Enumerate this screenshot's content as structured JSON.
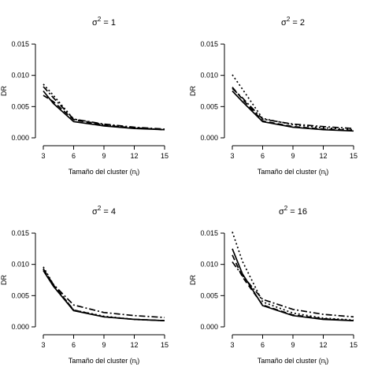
{
  "chart_data": [
    {
      "type": "line",
      "title_base": "σ",
      "title_sup": "2",
      "title_rest": " = 1",
      "xlabel_main": "Tamaño del cluster (n",
      "xlabel_sub": "i",
      "xlabel_end": ")",
      "ylabel": "DR",
      "xticks": [
        "3",
        "6",
        "9",
        "12",
        "15"
      ],
      "yticks": [
        "0.000",
        "0.005",
        "0.010",
        "0.015"
      ],
      "xlim": [
        3,
        15
      ],
      "ylim": [
        0,
        0.015
      ],
      "x": [
        3,
        4,
        6,
        9,
        12,
        15
      ],
      "series": [
        {
          "dash": "solid",
          "values": [
            0.0075,
            0.0055,
            0.0026,
            0.0019,
            0.0015,
            0.0013
          ]
        },
        {
          "dash": "dashed",
          "values": [
            0.0068,
            0.0058,
            0.0029,
            0.002,
            0.0016,
            0.0013
          ]
        },
        {
          "dash": "dotted",
          "values": [
            0.0086,
            0.0068,
            0.003,
            0.0021,
            0.0016,
            0.0013
          ]
        },
        {
          "dash": "dashdot",
          "values": [
            0.0082,
            0.0064,
            0.003,
            0.0022,
            0.0017,
            0.0014
          ]
        }
      ]
    },
    {
      "type": "line",
      "title_base": "σ",
      "title_sup": "2",
      "title_rest": " = 2",
      "xlabel_main": "Tamaño del cluster (n",
      "xlabel_sub": "i",
      "xlabel_end": ")",
      "ylabel": "DR",
      "xticks": [
        "3",
        "6",
        "9",
        "12",
        "15"
      ],
      "yticks": [
        "0.000",
        "0.005",
        "0.010",
        "0.015"
      ],
      "xlim": [
        3,
        15
      ],
      "ylim": [
        0,
        0.015
      ],
      "x": [
        3,
        4,
        6,
        9,
        12,
        15
      ],
      "series": [
        {
          "dash": "solid",
          "values": [
            0.0075,
            0.0058,
            0.0026,
            0.0017,
            0.0013,
            0.0011
          ]
        },
        {
          "dash": "dashed",
          "values": [
            0.0081,
            0.0062,
            0.0027,
            0.0018,
            0.0014,
            0.0012
          ]
        },
        {
          "dash": "dotted",
          "values": [
            0.0101,
            0.0078,
            0.0031,
            0.0021,
            0.0016,
            0.0013
          ]
        },
        {
          "dash": "dashdot",
          "values": [
            0.0079,
            0.0064,
            0.003,
            0.0022,
            0.0018,
            0.0015
          ]
        }
      ]
    },
    {
      "type": "line",
      "title_base": "σ",
      "title_sup": "2",
      "title_rest": " = 4",
      "xlabel_main": "Tamaño del cluster (n",
      "xlabel_sub": "i",
      "xlabel_end": ")",
      "ylabel": "DR",
      "xticks": [
        "3",
        "6",
        "9",
        "12",
        "15"
      ],
      "yticks": [
        "0.000",
        "0.005",
        "0.010",
        "0.015"
      ],
      "xlim": [
        3,
        15
      ],
      "ylim": [
        0,
        0.015
      ],
      "x": [
        3,
        4,
        6,
        9,
        12,
        15
      ],
      "series": [
        {
          "dash": "solid",
          "values": [
            0.009,
            0.0065,
            0.0026,
            0.0016,
            0.0012,
            0.001
          ]
        },
        {
          "dash": "dashed",
          "values": [
            0.0093,
            0.0067,
            0.0027,
            0.0016,
            0.0012,
            0.001
          ]
        },
        {
          "dash": "dotted",
          "values": [
            0.0096,
            0.0068,
            0.0027,
            0.0017,
            0.0012,
            0.001
          ]
        },
        {
          "dash": "dashdot",
          "values": [
            0.0092,
            0.0068,
            0.0035,
            0.0023,
            0.0018,
            0.0015
          ]
        }
      ]
    },
    {
      "type": "line",
      "title_base": "σ",
      "title_sup": "2",
      "title_rest": " = 16",
      "xlabel_main": "Tamaño del cluster (n",
      "xlabel_sub": "i",
      "xlabel_end": ")",
      "ylabel": "DR",
      "xticks": [
        "3",
        "6",
        "9",
        "12",
        "15"
      ],
      "yticks": [
        "0.000",
        "0.005",
        "0.010",
        "0.015"
      ],
      "xlim": [
        3,
        15
      ],
      "ylim": [
        0,
        0.015
      ],
      "x": [
        3,
        4,
        6,
        9,
        12,
        15
      ],
      "series": [
        {
          "dash": "solid",
          "values": [
            0.0125,
            0.0085,
            0.0034,
            0.0018,
            0.0012,
            0.001
          ]
        },
        {
          "dash": "dashed",
          "values": [
            0.0115,
            0.008,
            0.0035,
            0.0019,
            0.0013,
            0.001
          ]
        },
        {
          "dash": "dotted",
          "values": [
            0.0152,
            0.0105,
            0.004,
            0.0022,
            0.0014,
            0.0011
          ]
        },
        {
          "dash": "dashdot",
          "values": [
            0.0104,
            0.0082,
            0.0044,
            0.0028,
            0.002,
            0.0016
          ]
        }
      ]
    }
  ]
}
